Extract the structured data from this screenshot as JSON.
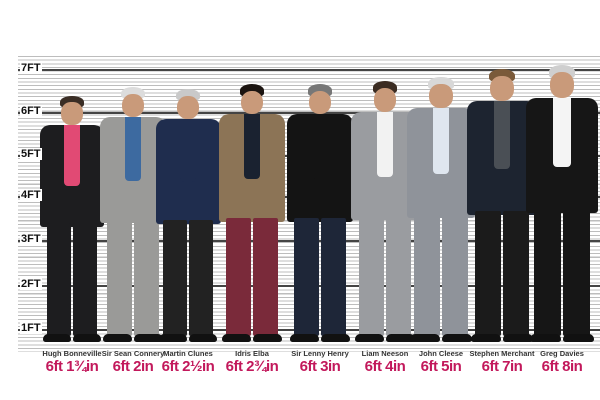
{
  "scale_labels": [
    "7FT",
    "6FT",
    "5FT",
    "4FT",
    "3FT",
    "2FT",
    "1FT"
  ],
  "people": [
    {
      "name": "Hugh Bonneville",
      "height": "6ft 1¾in",
      "suit": "#1d1d1f",
      "legs": "#1d1d1f",
      "shirt": "#e14a74",
      "hair": "#3a2d25"
    },
    {
      "name": "Sir Sean Connery",
      "height": "6ft 2in",
      "suit": "#9a9a98",
      "legs": "#9a9a98",
      "shirt": "#3d6aa0",
      "hair": "#dcdcdc"
    },
    {
      "name": "Martin Clunes",
      "height": "6ft 2½in",
      "suit": "#1f2d4e",
      "legs": "#222",
      "shirt": "#1f2d4e",
      "hair": "#c9c9c9"
    },
    {
      "name": "Idris Elba",
      "height": "6ft 2¾in",
      "suit": "#8c7456",
      "legs": "#7a2a3a",
      "shirt": "#1a2230",
      "hair": "#1b1410"
    },
    {
      "name": "Sir Lenny Henry",
      "height": "6ft 3in",
      "suit": "#141414",
      "legs": "#1e2638",
      "shirt": "#141414",
      "hair": "#777"
    },
    {
      "name": "Liam Neeson",
      "height": "6ft 4in",
      "suit": "#9a9ca0",
      "legs": "#9a9ca0",
      "shirt": "#f2f2f2",
      "hair": "#3b2c22"
    },
    {
      "name": "John Cleese",
      "height": "6ft 5in",
      "suit": "#8f939a",
      "legs": "#8f939a",
      "shirt": "#dfe6ef",
      "hair": "#d8d8d8"
    },
    {
      "name": "Stephen Merchant",
      "height": "6ft 7in",
      "suit": "#1d2430",
      "legs": "#1b1b1b",
      "shirt": "#4a4f55",
      "hair": "#7a5a3a"
    },
    {
      "name": "Greg Davies",
      "height": "6ft 8in",
      "suit": "#161616",
      "legs": "#161616",
      "shirt": "#f4f4f4",
      "hair": "#cfcfcf"
    }
  ]
}
